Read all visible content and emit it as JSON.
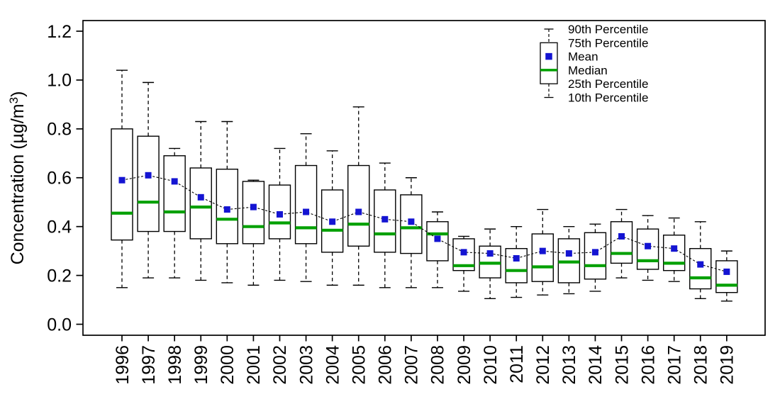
{
  "chart_data": {
    "type": "boxplot",
    "title": "",
    "xlabel": "",
    "ylabel": "Concentration (µg/m³)",
    "ylim": [
      0.0,
      1.2
    ],
    "yticks": [
      0.0,
      0.2,
      0.4,
      0.6,
      0.8,
      1.0,
      1.2
    ],
    "grid": false,
    "legend_position": "top-right-inside",
    "legend": [
      "90th Percentile",
      "75th Percentile",
      "Mean",
      "Median",
      "25th Percentile",
      "10th Percentile"
    ],
    "categories": [
      "1996",
      "1997",
      "1998",
      "1999",
      "2000",
      "2001",
      "2002",
      "2003",
      "2004",
      "2005",
      "2006",
      "2007",
      "2008",
      "2009",
      "2010",
      "2011",
      "2012",
      "2013",
      "2014",
      "2015",
      "2016",
      "2017",
      "2018",
      "2019"
    ],
    "series": [
      {
        "name": "90th Percentile",
        "values": [
          1.04,
          0.99,
          0.72,
          0.83,
          0.83,
          0.59,
          0.72,
          0.78,
          0.71,
          0.89,
          0.66,
          0.6,
          0.46,
          0.36,
          0.39,
          0.4,
          0.47,
          0.4,
          0.41,
          0.47,
          0.445,
          0.435,
          0.42,
          0.3
        ]
      },
      {
        "name": "75th Percentile",
        "values": [
          0.8,
          0.77,
          0.69,
          0.64,
          0.635,
          0.585,
          0.57,
          0.65,
          0.55,
          0.65,
          0.55,
          0.53,
          0.42,
          0.35,
          0.32,
          0.31,
          0.37,
          0.35,
          0.375,
          0.42,
          0.39,
          0.365,
          0.31,
          0.26
        ]
      },
      {
        "name": "Mean",
        "values": [
          0.59,
          0.61,
          0.585,
          0.52,
          0.47,
          0.48,
          0.45,
          0.46,
          0.42,
          0.46,
          0.43,
          0.42,
          0.35,
          0.295,
          0.29,
          0.27,
          0.3,
          0.29,
          0.295,
          0.36,
          0.32,
          0.31,
          0.245,
          0.215
        ]
      },
      {
        "name": "Median",
        "values": [
          0.455,
          0.5,
          0.46,
          0.48,
          0.43,
          0.4,
          0.415,
          0.395,
          0.385,
          0.41,
          0.37,
          0.395,
          0.37,
          0.24,
          0.25,
          0.22,
          0.235,
          0.255,
          0.24,
          0.29,
          0.26,
          0.25,
          0.19,
          0.16
        ]
      },
      {
        "name": "25th Percentile",
        "values": [
          0.345,
          0.38,
          0.38,
          0.35,
          0.33,
          0.33,
          0.35,
          0.33,
          0.295,
          0.32,
          0.295,
          0.29,
          0.26,
          0.22,
          0.19,
          0.17,
          0.175,
          0.17,
          0.185,
          0.25,
          0.225,
          0.22,
          0.145,
          0.13
        ]
      },
      {
        "name": "10th Percentile",
        "values": [
          0.15,
          0.19,
          0.19,
          0.18,
          0.17,
          0.16,
          0.18,
          0.175,
          0.16,
          0.16,
          0.15,
          0.15,
          0.15,
          0.135,
          0.105,
          0.11,
          0.12,
          0.125,
          0.135,
          0.19,
          0.18,
          0.175,
          0.105,
          0.095
        ]
      }
    ],
    "colors": {
      "mean_marker": "#1414d2",
      "median_line": "#00a000",
      "box_outline": "#000000",
      "whisker": "#000000",
      "mean_connector": "#000000",
      "background": "#ffffff"
    }
  }
}
